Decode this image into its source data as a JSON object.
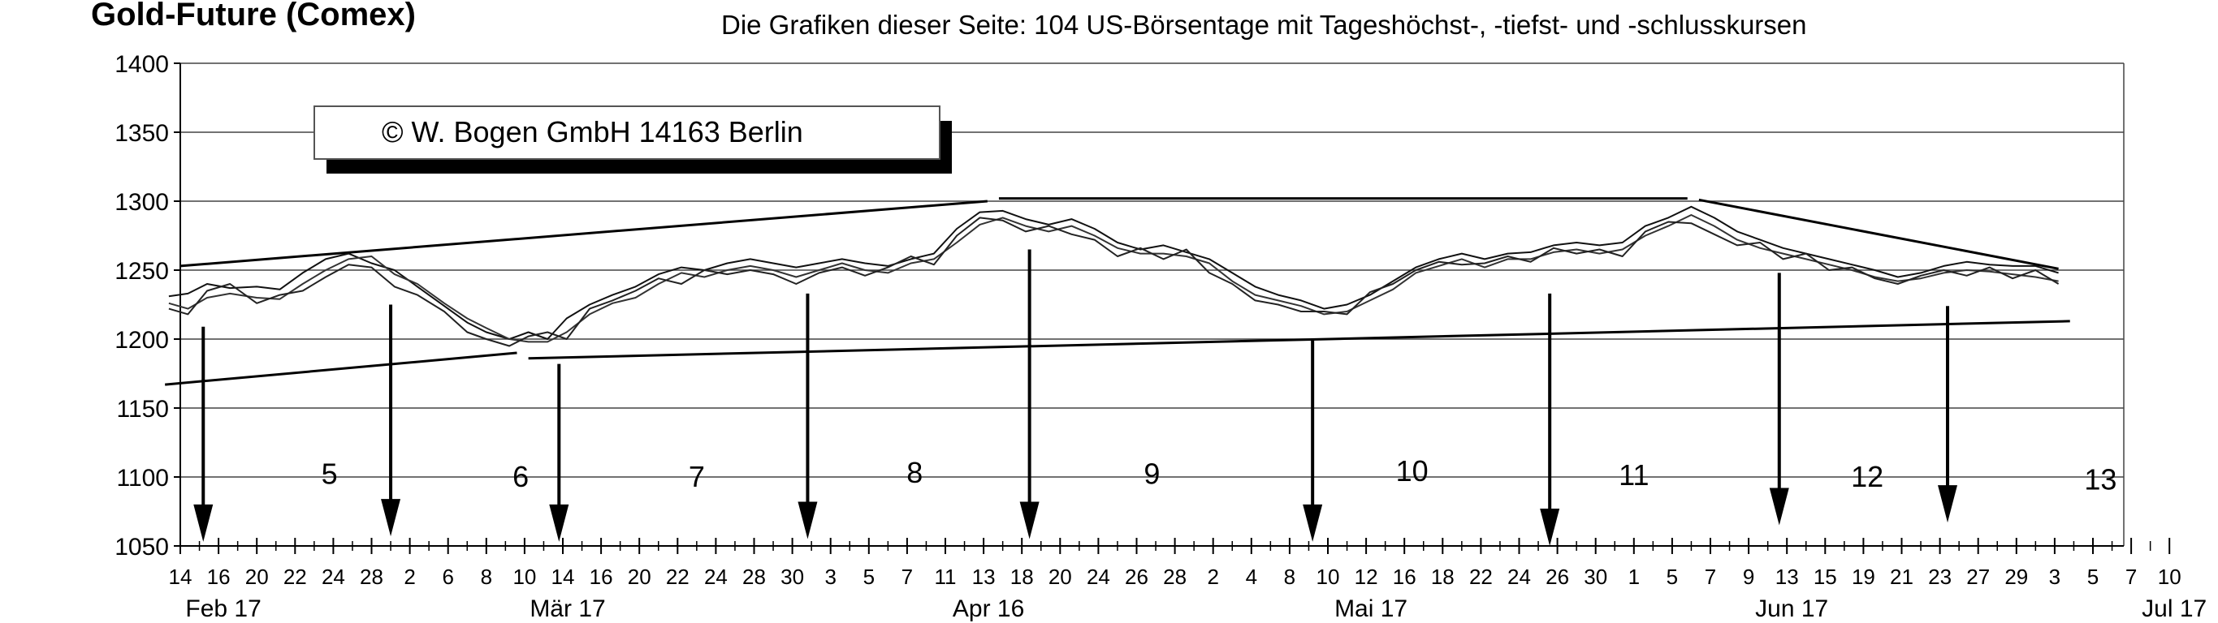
{
  "title": "Gold-Future (Comex)",
  "subtitle": "Die Grafiken dieser Seite: 104 US-Börsentage mit Tageshöchst-, -tiefst- und -schlusskursen",
  "copyright": "©  W. Bogen GmbH 14163 Berlin",
  "chart_data": {
    "type": "line",
    "title": "Gold-Future (Comex)",
    "xlabel": "",
    "ylabel": "",
    "ylim": [
      1050,
      1400
    ],
    "yticks": [
      1050,
      1100,
      1150,
      1200,
      1250,
      1300,
      1350,
      1400
    ],
    "grid": true,
    "x_tick_labels": [
      "14",
      "16",
      "20",
      "22",
      "24",
      "28",
      "2",
      "6",
      "8",
      "10",
      "14",
      "16",
      "20",
      "22",
      "24",
      "28",
      "30",
      "3",
      "5",
      "7",
      "11",
      "13",
      "18",
      "20",
      "24",
      "26",
      "28",
      "2",
      "4",
      "8",
      "10",
      "12",
      "16",
      "18",
      "22",
      "24",
      "26",
      "30",
      "1",
      "5",
      "7",
      "9",
      "13",
      "15",
      "19",
      "21",
      "23",
      "27",
      "29",
      "3",
      "5",
      "7",
      "10"
    ],
    "month_labels": [
      "Feb 17",
      "Mär 17",
      "Apr 16",
      "Mai 17",
      "Jun 17",
      "Jul 17"
    ],
    "month_label_after_tick": [
      1,
      10,
      21,
      31,
      42,
      52
    ],
    "cycle_labels": [
      "5",
      "6",
      "7",
      "8",
      "9",
      "10",
      "11",
      "12",
      "13"
    ],
    "cycle_label_values": [
      1095,
      1093,
      1093,
      1096,
      1095,
      1097,
      1094,
      1093,
      1091
    ],
    "cycle_label_after_tick": [
      3.9,
      8.9,
      13.5,
      19.2,
      25.4,
      32.2,
      38.0,
      44.1,
      50.2
    ],
    "arrows": [
      {
        "at_tick": 0.6,
        "from": 1209,
        "to": 1053
      },
      {
        "at_tick": 5.5,
        "from": 1225,
        "to": 1057
      },
      {
        "at_tick": 9.9,
        "from": 1182,
        "to": 1053
      },
      {
        "at_tick": 16.4,
        "from": 1233,
        "to": 1055
      },
      {
        "at_tick": 22.2,
        "from": 1265,
        "to": 1055
      },
      {
        "at_tick": 29.6,
        "from": 1200,
        "to": 1053
      },
      {
        "at_tick": 35.8,
        "from": 1233,
        "to": 1050
      },
      {
        "at_tick": 41.8,
        "from": 1248,
        "to": 1065
      },
      {
        "at_tick": 46.2,
        "from": 1224,
        "to": 1067
      }
    ],
    "trendlines": [
      {
        "x": [
          0,
          21.1
        ],
        "y": [
          1253,
          1300
        ]
      },
      {
        "x": [
          21.4,
          39.4
        ],
        "y": [
          1302,
          1302
        ]
      },
      {
        "x": [
          39.7,
          49.1
        ],
        "y": [
          1301,
          1251
        ]
      },
      {
        "x": [
          -0.4,
          8.8
        ],
        "y": [
          1167,
          1190
        ]
      },
      {
        "x": [
          9.1,
          49.4
        ],
        "y": [
          1186,
          1213
        ]
      }
    ],
    "series": [
      {
        "values_at_tick": [
          [
            -0.3,
            1231
          ],
          [
            0.2,
            1233
          ],
          [
            0.7,
            1240
          ],
          [
            1.3,
            1237
          ],
          [
            2.0,
            1238
          ],
          [
            2.6,
            1236
          ],
          [
            3.2,
            1248
          ],
          [
            3.8,
            1258
          ],
          [
            4.4,
            1262
          ],
          [
            5.0,
            1255
          ],
          [
            5.6,
            1250
          ],
          [
            6.2,
            1238
          ],
          [
            6.9,
            1224
          ],
          [
            7.5,
            1212
          ],
          [
            8.0,
            1205
          ],
          [
            8.6,
            1200
          ],
          [
            9.1,
            1205
          ],
          [
            9.6,
            1200
          ],
          [
            10.1,
            1215
          ],
          [
            10.7,
            1225
          ],
          [
            11.3,
            1232
          ],
          [
            11.9,
            1238
          ],
          [
            12.5,
            1247
          ],
          [
            13.1,
            1252
          ],
          [
            13.7,
            1250
          ],
          [
            14.3,
            1255
          ],
          [
            14.9,
            1258
          ],
          [
            15.5,
            1255
          ],
          [
            16.1,
            1252
          ],
          [
            16.7,
            1255
          ],
          [
            17.3,
            1258
          ],
          [
            17.9,
            1255
          ],
          [
            18.5,
            1253
          ],
          [
            19.1,
            1258
          ],
          [
            19.7,
            1262
          ],
          [
            20.3,
            1280
          ],
          [
            20.9,
            1292
          ],
          [
            21.5,
            1293
          ],
          [
            22.1,
            1287
          ],
          [
            22.7,
            1283
          ],
          [
            23.3,
            1287
          ],
          [
            23.9,
            1280
          ],
          [
            24.5,
            1270
          ],
          [
            25.1,
            1265
          ],
          [
            25.7,
            1268
          ],
          [
            26.3,
            1263
          ],
          [
            26.9,
            1258
          ],
          [
            27.5,
            1248
          ],
          [
            28.1,
            1238
          ],
          [
            28.7,
            1232
          ],
          [
            29.3,
            1228
          ],
          [
            29.9,
            1222
          ],
          [
            30.5,
            1225
          ],
          [
            31.1,
            1232
          ],
          [
            31.7,
            1242
          ],
          [
            32.3,
            1252
          ],
          [
            32.9,
            1258
          ],
          [
            33.5,
            1262
          ],
          [
            34.1,
            1258
          ],
          [
            34.7,
            1262
          ],
          [
            35.3,
            1263
          ],
          [
            35.9,
            1268
          ],
          [
            36.5,
            1270
          ],
          [
            37.1,
            1268
          ],
          [
            37.7,
            1270
          ],
          [
            38.3,
            1282
          ],
          [
            38.9,
            1288
          ],
          [
            39.5,
            1296
          ],
          [
            40.1,
            1288
          ],
          [
            40.7,
            1278
          ],
          [
            41.3,
            1272
          ],
          [
            41.9,
            1266
          ],
          [
            42.5,
            1262
          ],
          [
            43.1,
            1258
          ],
          [
            43.7,
            1254
          ],
          [
            44.3,
            1250
          ],
          [
            44.9,
            1245
          ],
          [
            45.5,
            1248
          ],
          [
            46.1,
            1253
          ],
          [
            46.7,
            1256
          ],
          [
            47.3,
            1254
          ],
          [
            47.9,
            1253
          ],
          [
            48.5,
            1253
          ],
          [
            49.1,
            1248
          ]
        ]
      },
      {
        "values_at_tick": [
          [
            -0.3,
            1226
          ],
          [
            0.2,
            1222
          ],
          [
            0.7,
            1230
          ],
          [
            1.3,
            1233
          ],
          [
            2.0,
            1230
          ],
          [
            2.6,
            1229
          ],
          [
            3.2,
            1240
          ],
          [
            3.8,
            1250
          ],
          [
            4.4,
            1258
          ],
          [
            5.0,
            1260
          ],
          [
            5.6,
            1247
          ],
          [
            6.2,
            1240
          ],
          [
            6.9,
            1226
          ],
          [
            7.5,
            1215
          ],
          [
            8.0,
            1208
          ],
          [
            8.6,
            1200
          ],
          [
            9.1,
            1198
          ],
          [
            9.6,
            1198
          ],
          [
            10.1,
            1205
          ],
          [
            10.7,
            1218
          ],
          [
            11.3,
            1226
          ],
          [
            11.9,
            1230
          ],
          [
            12.5,
            1240
          ],
          [
            13.1,
            1248
          ],
          [
            13.7,
            1245
          ],
          [
            14.3,
            1250
          ],
          [
            14.9,
            1253
          ],
          [
            15.5,
            1250
          ],
          [
            16.1,
            1245
          ],
          [
            16.7,
            1250
          ],
          [
            17.3,
            1255
          ],
          [
            17.9,
            1250
          ],
          [
            18.5,
            1248
          ],
          [
            19.1,
            1255
          ],
          [
            19.7,
            1258
          ],
          [
            20.3,
            1270
          ],
          [
            20.9,
            1283
          ],
          [
            21.5,
            1288
          ],
          [
            22.1,
            1282
          ],
          [
            22.7,
            1278
          ],
          [
            23.3,
            1282
          ],
          [
            23.9,
            1275
          ],
          [
            24.5,
            1266
          ],
          [
            25.1,
            1262
          ],
          [
            25.7,
            1262
          ],
          [
            26.3,
            1260
          ],
          [
            26.9,
            1255
          ],
          [
            27.5,
            1242
          ],
          [
            28.1,
            1232
          ],
          [
            28.7,
            1228
          ],
          [
            29.3,
            1224
          ],
          [
            29.9,
            1218
          ],
          [
            30.5,
            1220
          ],
          [
            31.1,
            1228
          ],
          [
            31.7,
            1236
          ],
          [
            32.3,
            1248
          ],
          [
            32.9,
            1253
          ],
          [
            33.5,
            1258
          ],
          [
            34.1,
            1252
          ],
          [
            34.7,
            1258
          ],
          [
            35.3,
            1258
          ],
          [
            35.9,
            1263
          ],
          [
            36.5,
            1265
          ],
          [
            37.1,
            1262
          ],
          [
            37.7,
            1265
          ],
          [
            38.3,
            1275
          ],
          [
            38.9,
            1282
          ],
          [
            39.5,
            1290
          ],
          [
            40.1,
            1282
          ],
          [
            40.7,
            1272
          ],
          [
            41.3,
            1266
          ],
          [
            41.9,
            1262
          ],
          [
            42.5,
            1258
          ],
          [
            43.1,
            1254
          ],
          [
            43.7,
            1250
          ],
          [
            44.3,
            1245
          ],
          [
            44.9,
            1242
          ],
          [
            45.5,
            1244
          ],
          [
            46.1,
            1248
          ],
          [
            46.7,
            1250
          ],
          [
            47.3,
            1249
          ],
          [
            47.9,
            1247
          ],
          [
            48.5,
            1245
          ],
          [
            49.1,
            1242
          ]
        ]
      },
      {
        "values_at_tick": [
          [
            -0.3,
            1222
          ],
          [
            0.2,
            1218
          ],
          [
            0.7,
            1235
          ],
          [
            1.3,
            1240
          ],
          [
            2.0,
            1226
          ],
          [
            2.6,
            1232
          ],
          [
            3.2,
            1235
          ],
          [
            3.8,
            1245
          ],
          [
            4.4,
            1254
          ],
          [
            5.0,
            1252
          ],
          [
            5.6,
            1238
          ],
          [
            6.2,
            1232
          ],
          [
            6.9,
            1220
          ],
          [
            7.5,
            1205
          ],
          [
            8.0,
            1200
          ],
          [
            8.6,
            1195
          ],
          [
            9.1,
            1202
          ],
          [
            9.6,
            1205
          ],
          [
            10.1,
            1200
          ],
          [
            10.7,
            1222
          ],
          [
            11.3,
            1228
          ],
          [
            11.9,
            1235
          ],
          [
            12.5,
            1244
          ],
          [
            13.1,
            1240
          ],
          [
            13.7,
            1250
          ],
          [
            14.3,
            1247
          ],
          [
            14.9,
            1250
          ],
          [
            15.5,
            1247
          ],
          [
            16.1,
            1240
          ],
          [
            16.7,
            1248
          ],
          [
            17.3,
            1252
          ],
          [
            17.9,
            1246
          ],
          [
            18.5,
            1252
          ],
          [
            19.1,
            1260
          ],
          [
            19.7,
            1254
          ],
          [
            20.3,
            1275
          ],
          [
            20.9,
            1288
          ],
          [
            21.5,
            1286
          ],
          [
            22.1,
            1278
          ],
          [
            22.7,
            1282
          ],
          [
            23.3,
            1276
          ],
          [
            23.9,
            1272
          ],
          [
            24.5,
            1260
          ],
          [
            25.1,
            1266
          ],
          [
            25.7,
            1258
          ],
          [
            26.3,
            1265
          ],
          [
            26.9,
            1248
          ],
          [
            27.5,
            1240
          ],
          [
            28.1,
            1228
          ],
          [
            28.7,
            1225
          ],
          [
            29.3,
            1220
          ],
          [
            29.9,
            1220
          ],
          [
            30.5,
            1218
          ],
          [
            31.1,
            1234
          ],
          [
            31.7,
            1240
          ],
          [
            32.3,
            1250
          ],
          [
            32.9,
            1256
          ],
          [
            33.5,
            1254
          ],
          [
            34.1,
            1255
          ],
          [
            34.7,
            1260
          ],
          [
            35.3,
            1256
          ],
          [
            35.9,
            1266
          ],
          [
            36.5,
            1262
          ],
          [
            37.1,
            1265
          ],
          [
            37.7,
            1260
          ],
          [
            38.3,
            1278
          ],
          [
            38.9,
            1285
          ],
          [
            39.5,
            1284
          ],
          [
            40.1,
            1276
          ],
          [
            40.7,
            1268
          ],
          [
            41.3,
            1270
          ],
          [
            41.9,
            1258
          ],
          [
            42.5,
            1262
          ],
          [
            43.1,
            1250
          ],
          [
            43.7,
            1252
          ],
          [
            44.3,
            1244
          ],
          [
            44.9,
            1240
          ],
          [
            45.5,
            1246
          ],
          [
            46.1,
            1250
          ],
          [
            46.7,
            1246
          ],
          [
            47.3,
            1252
          ],
          [
            47.9,
            1244
          ],
          [
            48.5,
            1250
          ],
          [
            49.1,
            1240
          ]
        ]
      }
    ]
  }
}
